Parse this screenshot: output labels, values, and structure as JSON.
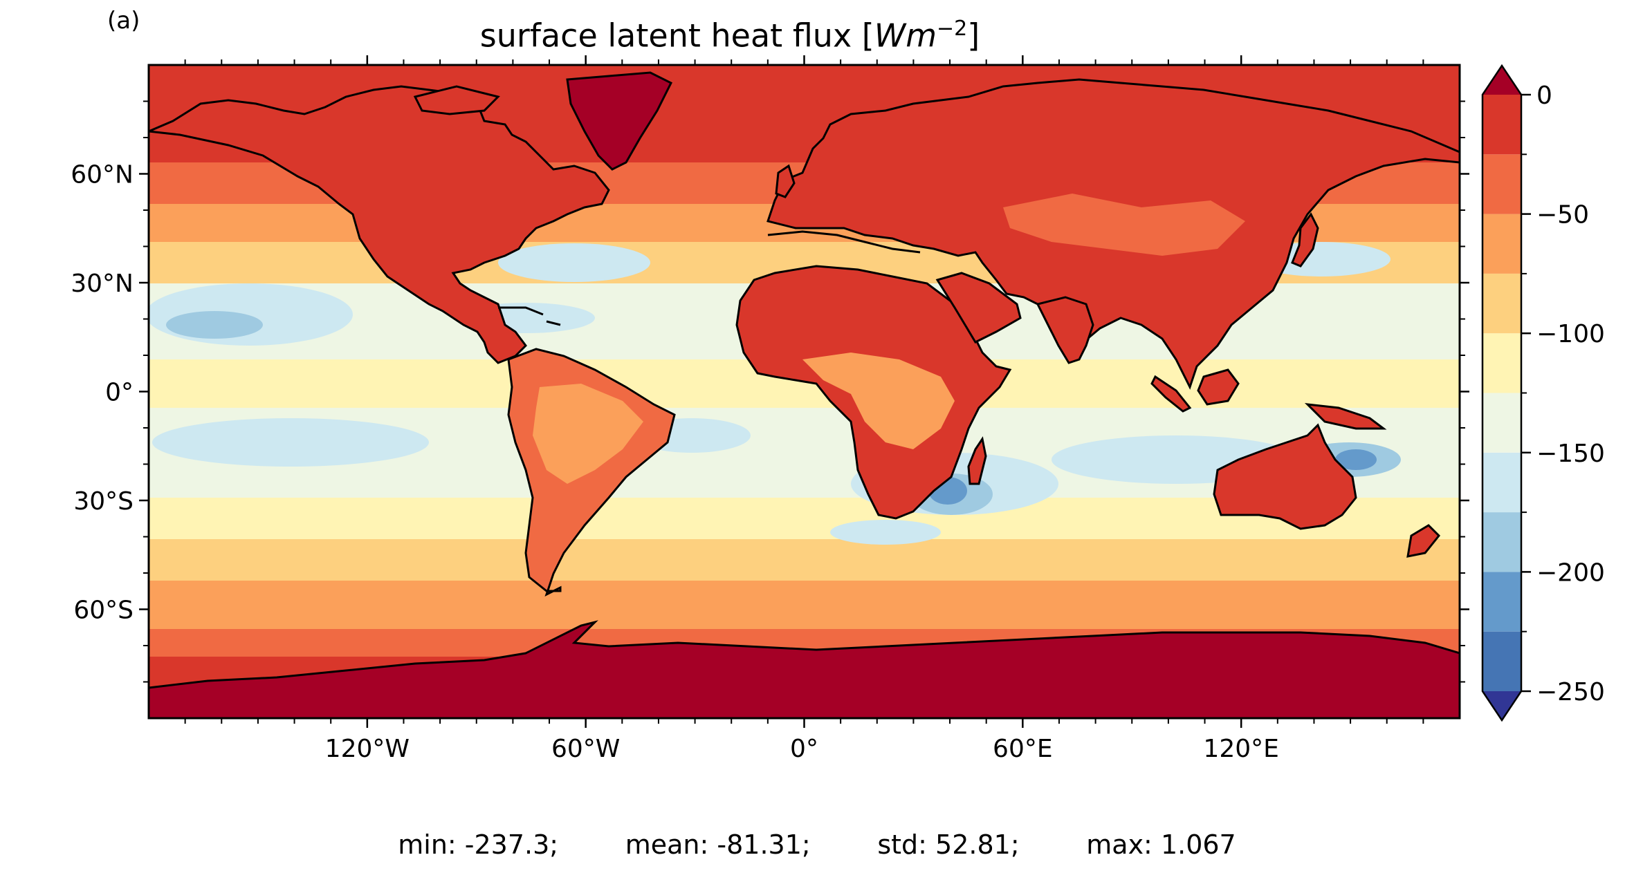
{
  "panel_label": "(a)",
  "title": {
    "prefix": "surface latent heat flux [",
    "unit_italic": "Wm",
    "unit_sup": "−2",
    "suffix": "]"
  },
  "map": {
    "projection": "plate-carree",
    "lon_range": [
      -180,
      180
    ],
    "lat_range": [
      -90,
      90
    ],
    "x_ticks": [
      {
        "lon": -120,
        "label": "120°W"
      },
      {
        "lon": -60,
        "label": "60°W"
      },
      {
        "lon": 0,
        "label": "0°"
      },
      {
        "lon": 60,
        "label": "60°E"
      },
      {
        "lon": 120,
        "label": "120°E"
      }
    ],
    "y_ticks": [
      {
        "lat": 60,
        "label": "60°N"
      },
      {
        "lat": 30,
        "label": "30°N"
      },
      {
        "lat": 0,
        "label": "0°"
      },
      {
        "lat": -30,
        "label": "30°S"
      },
      {
        "lat": -60,
        "label": "60°S"
      }
    ],
    "coastlines": true
  },
  "colorbar": {
    "cmap": "RdYlBu",
    "extend": "both",
    "boundaries": [
      -250,
      -225,
      -200,
      -175,
      -150,
      -125,
      -100,
      -75,
      -50,
      -25,
      0
    ],
    "colors": [
      "#4575b4",
      "#649acb",
      "#9fcae1",
      "#cde8f1",
      "#eef6e4",
      "#fff4b4",
      "#fdd07f",
      "#fba05a",
      "#f06a43",
      "#d9372b"
    ],
    "under_color": "#313695",
    "over_color": "#a50026",
    "tick_labels": [
      {
        "value": 0,
        "label": "0"
      },
      {
        "value": -50,
        "label": "−50"
      },
      {
        "value": -100,
        "label": "−100"
      },
      {
        "value": -150,
        "label": "−150"
      },
      {
        "value": -200,
        "label": "−200"
      },
      {
        "value": -250,
        "label": "−250"
      }
    ]
  },
  "stats": {
    "min": "min: -237.3;",
    "mean": "mean: -81.31;",
    "std": "std: 52.81;",
    "max": "max: 1.067"
  }
}
